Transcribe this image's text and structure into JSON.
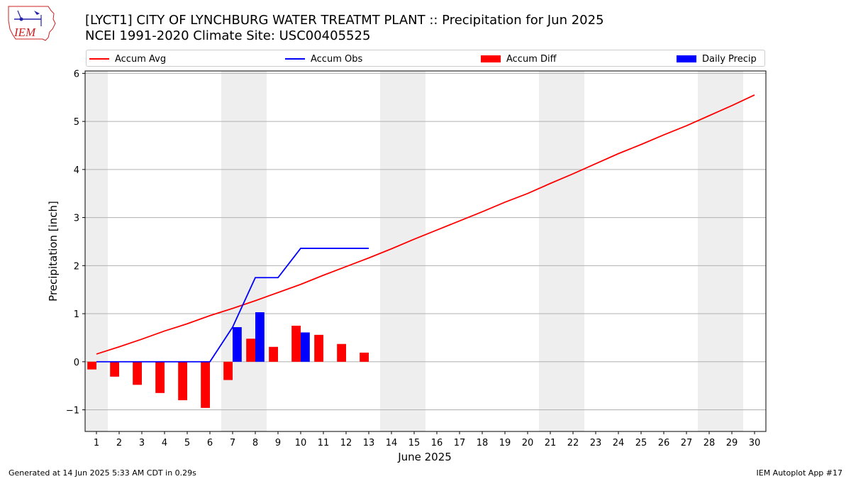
{
  "title_line1": "[LYCT1] CITY OF LYNCHBURG WATER TREATMT PLANT :: Precipitation for Jun 2025",
  "title_line2": "NCEI 1991-2020 Climate Site: USC00405525",
  "logo_text": "IEM",
  "footer_left": "Generated at 14 Jun 2025 5:33 AM CDT in 0.29s",
  "footer_right": "IEM Autoplot App #17",
  "legend": [
    {
      "label": "Accum Avg",
      "kind": "line",
      "color": "#ff0000"
    },
    {
      "label": "Accum Obs",
      "kind": "line",
      "color": "#0000ff"
    },
    {
      "label": "Accum Diff",
      "kind": "bar",
      "color": "#ff0000"
    },
    {
      "label": "Daily Precip",
      "kind": "bar",
      "color": "#0000ff"
    }
  ],
  "chart_data": {
    "type": "bar",
    "xlabel": "June 2025",
    "ylabel": "Precipitation [inch]",
    "xlim": [
      0.5,
      30.5
    ],
    "ylim": [
      -1.45,
      6.05
    ],
    "x_ticks": [
      1,
      2,
      3,
      4,
      5,
      6,
      7,
      8,
      9,
      10,
      11,
      12,
      13,
      14,
      15,
      16,
      17,
      18,
      19,
      20,
      21,
      22,
      23,
      24,
      25,
      26,
      27,
      28,
      29,
      30
    ],
    "y_ticks": [
      -1,
      0,
      1,
      2,
      3,
      4,
      5,
      6
    ],
    "y_tick_labels": [
      "−1",
      "0",
      "1",
      "2",
      "3",
      "4",
      "5",
      "6"
    ],
    "grid": "y",
    "legend_placement": "top",
    "weekend_shading": [
      [
        0.5,
        1.5
      ],
      [
        6.5,
        8.5
      ],
      [
        13.5,
        15.5
      ],
      [
        20.5,
        22.5
      ],
      [
        27.5,
        29.5
      ]
    ],
    "shading_color": "#eeeeee",
    "series": [
      {
        "name": "Accum Avg",
        "kind": "line",
        "color": "#ff0000",
        "x": [
          1,
          2,
          3,
          4,
          5,
          6,
          7,
          8,
          9,
          10,
          11,
          12,
          13,
          14,
          15,
          16,
          17,
          18,
          19,
          20,
          21,
          22,
          23,
          24,
          25,
          26,
          27,
          28,
          29,
          30
        ],
        "values": [
          0.16,
          0.31,
          0.47,
          0.64,
          0.79,
          0.96,
          1.11,
          1.27,
          1.44,
          1.61,
          1.8,
          1.98,
          2.16,
          2.35,
          2.55,
          2.74,
          2.93,
          3.12,
          3.32,
          3.5,
          3.71,
          3.91,
          4.12,
          4.33,
          4.52,
          4.72,
          4.91,
          5.12,
          5.33,
          5.55
        ]
      },
      {
        "name": "Accum Obs",
        "kind": "line",
        "color": "#0000ff",
        "x": [
          1,
          2,
          3,
          4,
          5,
          6,
          7,
          8,
          9,
          10,
          11,
          12,
          13
        ],
        "values": [
          0.0,
          0.0,
          0.0,
          0.0,
          0.0,
          0.0,
          0.72,
          1.75,
          1.75,
          2.36,
          2.36,
          2.36,
          2.36
        ]
      },
      {
        "name": "Accum Diff",
        "kind": "bar",
        "color": "#ff0000",
        "x": [
          1,
          2,
          3,
          4,
          5,
          6,
          7,
          8,
          9,
          10,
          11,
          12,
          13
        ],
        "values": [
          -0.16,
          -0.31,
          -0.48,
          -0.65,
          -0.8,
          -0.96,
          -0.38,
          0.48,
          0.31,
          0.75,
          0.56,
          0.37,
          0.19
        ]
      },
      {
        "name": "Daily Precip",
        "kind": "bar",
        "color": "#0000ff",
        "x": [
          1,
          2,
          3,
          4,
          5,
          6,
          7,
          8,
          9,
          10,
          11,
          12,
          13
        ],
        "values": [
          0.0,
          0.0,
          0.0,
          0.0,
          0.0,
          0.0,
          0.72,
          1.03,
          0.0,
          0.61,
          0.0,
          0.0,
          0.0
        ]
      }
    ]
  }
}
